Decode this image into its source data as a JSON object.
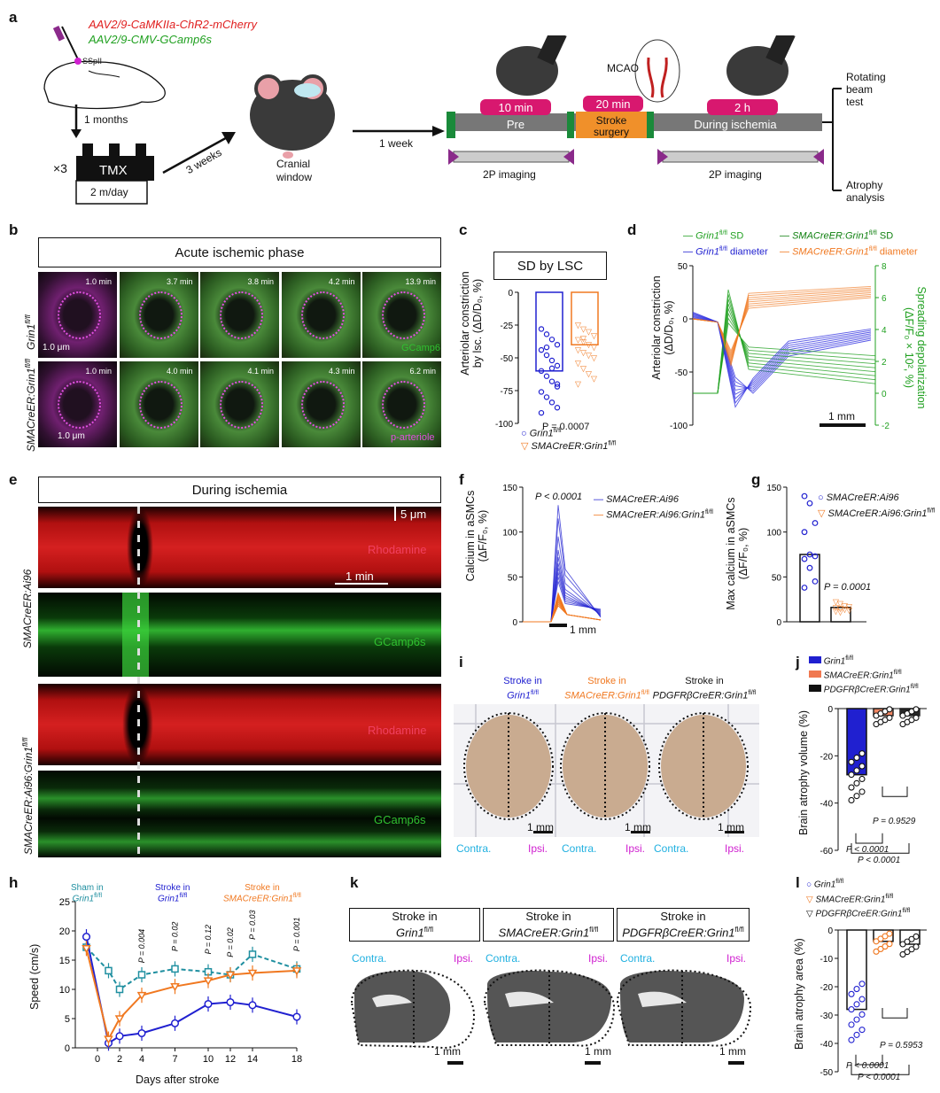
{
  "colors": {
    "red": "#e02020",
    "green": "#20a020",
    "blue": "#2020d0",
    "orange": "#f07820",
    "teal": "#1f8fa0",
    "magenta": "#d020d0",
    "cyan": "#20b0e0",
    "pink": "#d8186f"
  },
  "panel_a": {
    "label": "a",
    "virus1": "AAV2/9-CaMKIIa-ChR2-mCherry",
    "virus2": "AAV2/9-CMV-GCamp6s",
    "sspll": "SSpII",
    "months": "1 months",
    "x3": "×3",
    "tmx": "TMX",
    "dose": "2 m/day",
    "weeks": "3 weeks",
    "cranial": "Cranial",
    "window": "window",
    "week": "1 week",
    "pre_time": "10 min",
    "pre": "Pre",
    "stroke_time": "20 min",
    "stroke1": "Stroke",
    "stroke2": "surgery",
    "mcao": "MCAO",
    "during_time": "2 h",
    "during": "During ischemia",
    "imaging1": "2P imaging",
    "imaging2": "2P imaging",
    "rotating": "Rotating",
    "beam": "beam",
    "test": "test",
    "atrophy": "Atrophy",
    "analysis": "analysis"
  },
  "panel_b": {
    "label": "b",
    "title": "Acute ischemic phase",
    "row1": "Grin1",
    "row1_sup": "fl/fl",
    "row2": "SMACreER:Grin1",
    "row2_sup": "fl/fl",
    "times_row1": [
      "1.0 min",
      "3.7 min",
      "3.8 min",
      "4.2 min",
      "13.9 min"
    ],
    "times_row2": [
      "1.0 min",
      "4.0 min",
      "4.1 min",
      "4.3 min",
      "6.2 min"
    ],
    "scale1": "1.0 μm",
    "scale2": "1.0 μm",
    "gcamp": "GCamp6",
    "arteriole": "p-arteriole"
  },
  "panel_c": {
    "label": "c",
    "title": "SD by LSC",
    "ylabel1": "Arteriolar constriction",
    "ylabel2": "by lsc. (ΔD/D₀, %)",
    "pvalue": "P = 0.0007",
    "legend1": "Grin1",
    "legend1_sup": "fl/fl",
    "legend2": "SMACreER:Grin1",
    "legend2_sup": "fl/fl",
    "chart_data": {
      "type": "bar",
      "categories": [
        "Grin1 fl/fl",
        "SMACreER:Grin1 fl/fl"
      ],
      "values": [
        -60,
        -40
      ],
      "ylim": [
        -100,
        0
      ],
      "yticks": [
        0,
        -25,
        -50,
        -75,
        -100
      ],
      "points_g1": [
        -28,
        -32,
        -36,
        -40,
        -44,
        -48,
        -52,
        -56,
        -60,
        -64,
        -68,
        -72,
        -76,
        -80,
        -84,
        -88,
        -92,
        -42,
        -58,
        -70
      ],
      "points_g2": [
        -25,
        -28,
        -30,
        -33,
        -36,
        -38,
        -40,
        -42,
        -44,
        -46,
        -48,
        -50,
        -54,
        -58,
        -62,
        -66,
        -70,
        -35
      ]
    }
  },
  "panel_d": {
    "label": "d",
    "leg1": "Grin1",
    "leg1_sup": "fl/fl",
    "leg1_t": " SD",
    "leg2": "Grin1",
    "leg2_sup": "fl/fl",
    "leg2_t": " diameter",
    "leg3": "SMACreER:Grin1",
    "leg3_sup": "fl/fl",
    "leg3_t": " SD",
    "leg4": "SMACreER:Grin1",
    "leg4_sup": "fl/fl",
    "leg4_t": " diameter",
    "ylabel_left1": "Arteriolar constriction",
    "ylabel_left2": "(ΔD/D₀, %)",
    "ylabel_right1": "Spreading depolarization",
    "ylabel_right2": "(ΔF/F₀ × 10², %)",
    "scale": "1 mm",
    "chart_data": {
      "type": "line",
      "yticks_left": [
        50,
        0,
        -50,
        -100
      ],
      "yticks_right": [
        8,
        6,
        4,
        2,
        0,
        -2
      ]
    }
  },
  "panel_e": {
    "label": "e",
    "title": "During ischemia",
    "row1": "SMACreER:Ai96",
    "row2": "SMACreER:Ai96:Grin1",
    "row2_sup": "fl/fl",
    "rhod1": "Rhodamine",
    "gc1": "GCamp6s",
    "rhod2": "Rhodamine",
    "gc2": "GCamp6s",
    "scale_um": "5 μm",
    "scale_min": "1 min"
  },
  "panel_f": {
    "label": "f",
    "ylabel1": "Calcium in aSMCs",
    "ylabel2": "(ΔF/F₀, %)",
    "pvalue": "P < 0.0001",
    "leg1": "SMACreER:Ai96",
    "leg2": "SMACreER:Ai96:Grin1",
    "leg2_sup": "fl/fl",
    "scale": "1 mm",
    "chart_data": {
      "type": "line",
      "yticks": [
        150,
        100,
        50,
        0
      ]
    }
  },
  "panel_g": {
    "label": "g",
    "ylabel1": "Max calcium in aSMCs",
    "ylabel2": "(ΔF/F₀, %)",
    "pvalue": "P = 0.0001",
    "leg1": "SMACreER:Ai96",
    "leg2": "SMACreER:Ai96:Grin1",
    "leg2_sup": "fl/fl",
    "chart_data": {
      "type": "bar",
      "categories": [
        "SMACreER:Ai96",
        "SMACreER:Ai96:Grin1 fl/fl"
      ],
      "values": [
        75,
        16
      ],
      "ylim": [
        0,
        150
      ],
      "yticks": [
        150,
        100,
        50,
        0
      ],
      "points_1": [
        140,
        132,
        110,
        100,
        75,
        73,
        70,
        60,
        45,
        38
      ],
      "points_2": [
        22,
        20,
        18,
        17,
        16,
        15,
        14,
        13,
        12,
        11
      ]
    }
  },
  "panel_h": {
    "label": "h",
    "leg1": "Sham in",
    "leg1b": "Grin1",
    "leg1b_sup": "fl/fl",
    "leg2": "Stroke in",
    "leg2b": "Grin1",
    "leg2b_sup": "fl/fl",
    "leg3": "Stroke in",
    "leg3b": "SMACreER:Grin1",
    "leg3b_sup": "fl/fl",
    "ylabel": "Speed (cm/s)",
    "xlabel": "Days after stroke",
    "pvals": [
      "P = 0.004",
      "P = 0.02",
      "P = 0.12",
      "P = 0.02",
      "P = 0.03",
      "P = 0.001"
    ],
    "chart_data": {
      "type": "line",
      "x": [
        -1,
        1,
        2,
        4,
        7,
        10,
        12,
        14,
        18
      ],
      "xticks": [
        0,
        2,
        4,
        7,
        10,
        12,
        14,
        18
      ],
      "yticks": [
        0,
        5,
        10,
        15,
        20,
        25
      ],
      "ylim": [
        0,
        25
      ],
      "series": [
        {
          "name": "Sham in Grin1 fl/fl",
          "values": [
            17.2,
            13.2,
            10,
            12.5,
            13.5,
            13,
            12.5,
            16,
            13.5
          ]
        },
        {
          "name": "Stroke in Grin1 fl/fl",
          "values": [
            19,
            0.8,
            2,
            2.5,
            4.2,
            7.5,
            7.8,
            7.3,
            5.3
          ]
        },
        {
          "name": "Stroke in SMACreER:Grin1 fl/fl",
          "values": [
            17,
            1.5,
            5,
            9,
            10.5,
            11.5,
            12.5,
            12.8,
            13.2
          ]
        }
      ]
    }
  },
  "panel_i": {
    "label": "i",
    "c1a": "Stroke in",
    "c1b": "Grin1",
    "c1b_sup": "fl/fl",
    "c2a": "Stroke in",
    "c2b": "SMACreER:Grin1",
    "c2b_sup": "fl/fl",
    "c3a": "Stroke in",
    "c3b": "PDGFRβCreER:Grin1",
    "c3b_sup": "fl/fl",
    "contra": "Contra.",
    "ipsi": "Ipsi.",
    "scale": "1 mm"
  },
  "panel_j": {
    "label": "j",
    "leg1": "Grin1",
    "leg1_sup": "fl/fl",
    "leg2": "SMACreER:Grin1",
    "leg2_sup": "fl/fl",
    "leg3": "PDGFRβCreER:Grin1",
    "leg3_sup": "fl/fl",
    "ylabel": "Brain atrophy volume (%)",
    "p1": "P = 0.9529",
    "p2": "P < 0.0001",
    "p3": "P < 0.0001",
    "chart_data": {
      "type": "bar",
      "categories": [
        "Grin1 fl/fl",
        "SMACreER:Grin1 fl/fl",
        "PDGFRβCreER:Grin1 fl/fl"
      ],
      "values": [
        -28,
        -3,
        -3
      ],
      "ylim": [
        -60,
        0
      ],
      "yticks": [
        0,
        -20,
        -40,
        -60
      ]
    }
  },
  "panel_k": {
    "label": "k",
    "b1a": "Stroke in",
    "b1b": "Grin1",
    "b1b_sup": "fl/fl",
    "b2a": "Stroke in",
    "b2b": "SMACreER:Grin1",
    "b2b_sup": "fl/fl",
    "b3a": "Stroke in",
    "b3b": "PDGFRβCreER:Grin1",
    "b3b_sup": "fl/fl",
    "contra": "Contra.",
    "ipsi": "Ipsi.",
    "scale": "1 mm"
  },
  "panel_l": {
    "label": "l",
    "leg1": "Grin1",
    "leg1_sup": "fl/fl",
    "leg2": "SMACreER:Grin1",
    "leg2_sup": "fl/fl",
    "leg3": "PDGFRβCreER:Grin1",
    "leg3_sup": "fl/fl",
    "ylabel": "Brain atrophy area (%)",
    "p1": "P = 0.5953",
    "p2": "P < 0.0001",
    "p3": "P < 0.0001",
    "chart_data": {
      "type": "bar",
      "categories": [
        "Grin1 fl/fl",
        "SMACreER:Grin1 fl/fl",
        "PDGFRβCreER:Grin1 fl/fl"
      ],
      "values": [
        -28,
        -4,
        -5
      ],
      "ylim": [
        -50,
        0
      ],
      "yticks": [
        0,
        -10,
        -20,
        -30,
        -40,
        -50
      ]
    }
  }
}
